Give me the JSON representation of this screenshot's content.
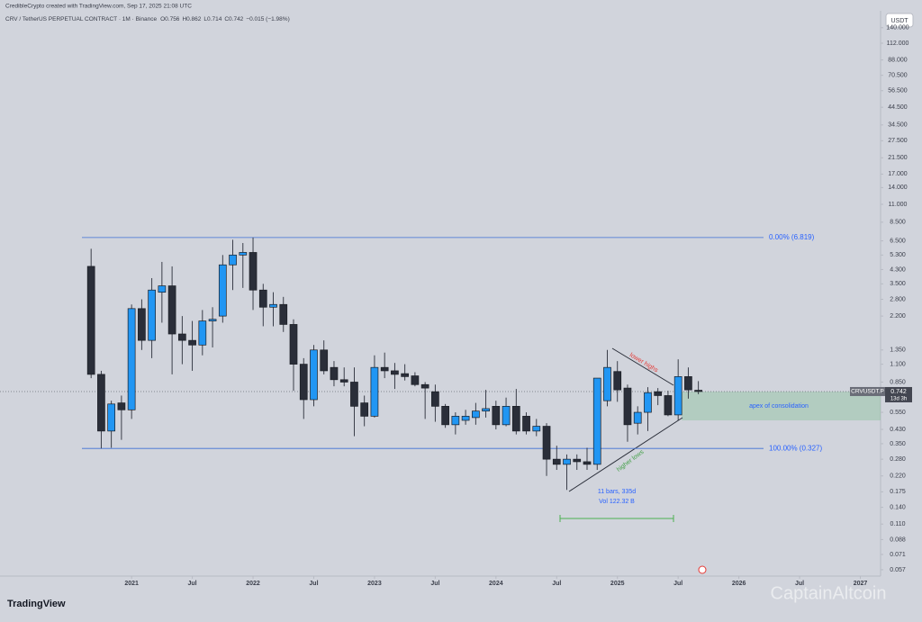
{
  "header": {
    "credit": "CredibleCrypto created with TradingView.com, Sep 17, 2025 21:08 UTC",
    "ohlc_labels": [
      "O",
      "H",
      "L",
      "C"
    ],
    "change": "−0.015 (−1.98%)",
    "currency": "USDT",
    "symbol_tag": "CRVUSDT.P",
    "countdown": "13d 3h",
    "logo": "TradingView",
    "watermark": "CaptainAltcoin"
  },
  "chart_data": {
    "type": "candlestick",
    "title": "CRV / TetherUS PERPETUAL CONTRACT · 1M · Binance",
    "x": [
      "2020-09",
      "2020-10",
      "2020-11",
      "2020-12",
      "2021-01",
      "2021-02",
      "2021-03",
      "2021-04",
      "2021-05",
      "2021-06",
      "2021-07",
      "2021-08",
      "2021-09",
      "2021-10",
      "2021-11",
      "2021-12",
      "2022-01",
      "2022-02",
      "2022-03",
      "2022-04",
      "2022-05",
      "2022-06",
      "2022-07",
      "2022-08",
      "2022-09",
      "2022-10",
      "2022-11",
      "2022-12",
      "2023-01",
      "2023-02",
      "2023-03",
      "2023-04",
      "2023-05",
      "2023-06",
      "2023-07",
      "2023-08",
      "2023-09",
      "2023-10",
      "2023-11",
      "2023-12",
      "2024-01",
      "2024-02",
      "2024-03",
      "2024-04",
      "2024-05",
      "2024-06",
      "2024-07",
      "2024-08",
      "2024-09",
      "2024-10",
      "2024-11",
      "2024-12",
      "2025-01",
      "2025-02",
      "2025-03",
      "2025-04",
      "2025-05",
      "2025-06",
      "2025-07",
      "2025-08",
      "2025-09"
    ],
    "open": [
      4.5,
      0.95,
      0.42,
      0.63,
      0.57,
      2.45,
      1.55,
      3.1,
      3.4,
      1.7,
      1.55,
      1.45,
      2.05,
      2.2,
      4.6,
      5.3,
      5.5,
      3.2,
      2.5,
      2.6,
      1.95,
      1.1,
      0.66,
      1.35,
      1.05,
      0.88,
      0.85,
      0.63,
      0.52,
      1.05,
      1.0,
      0.96,
      0.93,
      0.82,
      0.74,
      0.6,
      0.46,
      0.49,
      0.51,
      0.56,
      0.6,
      0.46,
      0.6,
      0.52,
      0.42,
      0.45,
      0.28,
      0.26,
      0.28,
      0.27,
      0.26,
      0.65,
      0.99,
      0.78,
      0.47,
      0.55,
      0.74,
      0.7,
      0.53,
      0.92,
      0.756
    ],
    "high": [
      5.8,
      1.0,
      0.65,
      0.7,
      2.6,
      2.8,
      3.8,
      4.8,
      4.5,
      2.2,
      2.05,
      2.4,
      2.5,
      5.3,
      6.6,
      6.3,
      6.819,
      3.5,
      3.1,
      2.9,
      2.1,
      1.2,
      1.45,
      1.55,
      1.15,
      1.05,
      1.05,
      0.7,
      1.25,
      1.3,
      1.12,
      1.1,
      0.98,
      0.85,
      0.82,
      0.62,
      0.55,
      0.57,
      0.63,
      0.76,
      0.65,
      0.68,
      0.77,
      0.55,
      0.5,
      0.47,
      0.34,
      0.3,
      0.3,
      0.33,
      0.9,
      1.35,
      1.15,
      0.82,
      0.6,
      0.79,
      0.78,
      0.75,
      1.18,
      1.05,
      0.862
    ],
    "low": [
      0.9,
      0.327,
      0.33,
      0.37,
      0.5,
      1.35,
      1.2,
      2.0,
      0.95,
      1.1,
      1.0,
      1.25,
      1.4,
      2.0,
      3.2,
      3.3,
      2.4,
      1.9,
      1.9,
      1.75,
      0.75,
      0.5,
      0.6,
      0.95,
      0.8,
      0.8,
      0.39,
      0.45,
      0.51,
      0.9,
      0.77,
      0.87,
      0.8,
      0.5,
      0.48,
      0.44,
      0.4,
      0.46,
      0.46,
      0.51,
      0.43,
      0.45,
      0.4,
      0.4,
      0.39,
      0.22,
      0.24,
      0.18,
      0.24,
      0.24,
      0.24,
      0.6,
      0.64,
      0.36,
      0.4,
      0.42,
      0.61,
      0.52,
      0.49,
      0.67,
      0.714
    ],
    "close": [
      0.95,
      0.42,
      0.62,
      0.57,
      2.45,
      1.55,
      3.2,
      3.4,
      1.7,
      1.55,
      1.45,
      2.05,
      2.1,
      4.6,
      5.3,
      5.5,
      3.2,
      2.5,
      2.6,
      1.95,
      1.1,
      0.66,
      1.35,
      1.0,
      0.88,
      0.85,
      0.6,
      0.52,
      1.05,
      1.0,
      0.95,
      0.92,
      0.82,
      0.78,
      0.6,
      0.46,
      0.52,
      0.52,
      0.56,
      0.58,
      0.46,
      0.6,
      0.42,
      0.42,
      0.45,
      0.28,
      0.26,
      0.28,
      0.27,
      0.26,
      0.9,
      1.05,
      0.76,
      0.46,
      0.55,
      0.73,
      0.7,
      0.53,
      0.92,
      0.76,
      0.742
    ],
    "up_color": "#2196f3",
    "down_color": "#2a2e39",
    "log_scale": true,
    "xlim": [
      "2019-12",
      "2027-03"
    ],
    "ylim": [
      0.052,
      174
    ],
    "xticks": [
      {
        "value": "2021-01",
        "label": "2021"
      },
      {
        "value": "2021-07",
        "label": "Jul"
      },
      {
        "value": "2022-01",
        "label": "2022"
      },
      {
        "value": "2022-07",
        "label": "Jul"
      },
      {
        "value": "2023-01",
        "label": "2023"
      },
      {
        "value": "2023-07",
        "label": "Jul"
      },
      {
        "value": "2024-01",
        "label": "2024"
      },
      {
        "value": "2024-07",
        "label": "Jul"
      },
      {
        "value": "2025-01",
        "label": "2025"
      },
      {
        "value": "2025-07",
        "label": "Jul"
      },
      {
        "value": "2026-01",
        "label": "2026"
      },
      {
        "value": "2026-07",
        "label": "Jul"
      },
      {
        "value": "2027-01",
        "label": "2027"
      }
    ],
    "yticks": [
      {
        "value": 140,
        "label": "140.000"
      },
      {
        "value": 112,
        "label": "112.000"
      },
      {
        "value": 88,
        "label": "88.000"
      },
      {
        "value": 70.5,
        "label": "70.500"
      },
      {
        "value": 56.5,
        "label": "56.500"
      },
      {
        "value": 44.5,
        "label": "44.500"
      },
      {
        "value": 34.5,
        "label": "34.500"
      },
      {
        "value": 27.5,
        "label": "27.500"
      },
      {
        "value": 21.5,
        "label": "21.500"
      },
      {
        "value": 17,
        "label": "17.000"
      },
      {
        "value": 14,
        "label": "14.000"
      },
      {
        "value": 11,
        "label": "11.000"
      },
      {
        "value": 8.5,
        "label": "8.500"
      },
      {
        "value": 6.5,
        "label": "6.500"
      },
      {
        "value": 5.3,
        "label": "5.300"
      },
      {
        "value": 4.3,
        "label": "4.300"
      },
      {
        "value": 3.5,
        "label": "3.500"
      },
      {
        "value": 2.8,
        "label": "2.800"
      },
      {
        "value": 2.2,
        "label": "2.200"
      },
      {
        "value": 1.35,
        "label": "1.350"
      },
      {
        "value": 1.1,
        "label": "1.100"
      },
      {
        "value": 0.85,
        "label": "0.850"
      },
      {
        "value": 0.55,
        "label": "0.550"
      },
      {
        "value": 0.43,
        "label": "0.430"
      },
      {
        "value": 0.35,
        "label": "0.350"
      },
      {
        "value": 0.28,
        "label": "0.280"
      },
      {
        "value": 0.22,
        "label": "0.220"
      },
      {
        "value": 0.175,
        "label": "0.175"
      },
      {
        "value": 0.14,
        "label": "0.140"
      },
      {
        "value": 0.11,
        "label": "0.110"
      },
      {
        "value": 0.088,
        "label": "0.088"
      },
      {
        "value": 0.071,
        "label": "0.071"
      },
      {
        "value": 0.057,
        "label": "0.057"
      }
    ],
    "fib_levels": [
      {
        "value": 6.819,
        "label": "0.00% (6.819)"
      },
      {
        "value": 0.327,
        "label": "100.00% (0.327)"
      }
    ],
    "annotations": {
      "lower_highs": "lower highs",
      "higher_lows": "higher lows",
      "apex": "apex of consolidation",
      "range_bars": "11 bars, 335d",
      "range_volume": "Vol 122.32 B"
    }
  }
}
